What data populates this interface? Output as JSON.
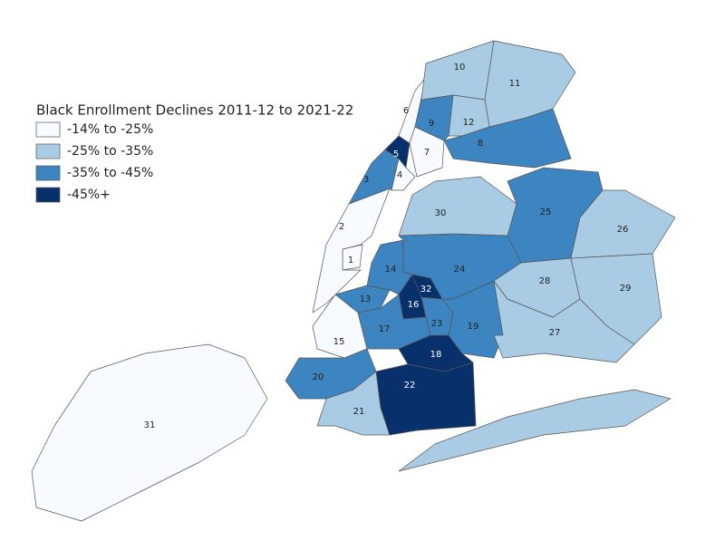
{
  "legend": {
    "title": "Black Enrollment Declines 2011-12 to 2021-22",
    "items": [
      {
        "label": "-14% to -25%",
        "color": "#f7fbff"
      },
      {
        "label": "-25% to -35%",
        "color": "#a9cce4"
      },
      {
        "label": "-35% to -45%",
        "color": "#3d85c0"
      },
      {
        "label": "-45%+",
        "color": "#08306b"
      }
    ]
  },
  "districts": [
    {
      "label": "1",
      "legend_item": 0
    },
    {
      "label": "2",
      "legend_item": 0
    },
    {
      "label": "3",
      "legend_item": 2
    },
    {
      "label": "4",
      "legend_item": 0
    },
    {
      "label": "5",
      "legend_item": 3
    },
    {
      "label": "6",
      "legend_item": 0
    },
    {
      "label": "7",
      "legend_item": 0
    },
    {
      "label": "8",
      "legend_item": 2
    },
    {
      "label": "9",
      "legend_item": 2
    },
    {
      "label": "10",
      "legend_item": 1
    },
    {
      "label": "11",
      "legend_item": 1
    },
    {
      "label": "12",
      "legend_item": 1
    },
    {
      "label": "13",
      "legend_item": 2
    },
    {
      "label": "14",
      "legend_item": 2
    },
    {
      "label": "15",
      "legend_item": 0
    },
    {
      "label": "16",
      "legend_item": 3
    },
    {
      "label": "17",
      "legend_item": 2
    },
    {
      "label": "18",
      "legend_item": 3
    },
    {
      "label": "19",
      "legend_item": 2
    },
    {
      "label": "20",
      "legend_item": 2
    },
    {
      "label": "21",
      "legend_item": 1
    },
    {
      "label": "22",
      "legend_item": 3
    },
    {
      "label": "23",
      "legend_item": 2
    },
    {
      "label": "24",
      "legend_item": 2
    },
    {
      "label": "25",
      "legend_item": 2
    },
    {
      "label": "26",
      "legend_item": 1
    },
    {
      "label": "27",
      "legend_item": 1
    },
    {
      "label": "28",
      "legend_item": 1
    },
    {
      "label": "29",
      "legend_item": 1
    },
    {
      "label": "30",
      "legend_item": 1
    },
    {
      "label": "31",
      "legend_item": 0
    },
    {
      "label": "32",
      "legend_item": 3
    }
  ]
}
